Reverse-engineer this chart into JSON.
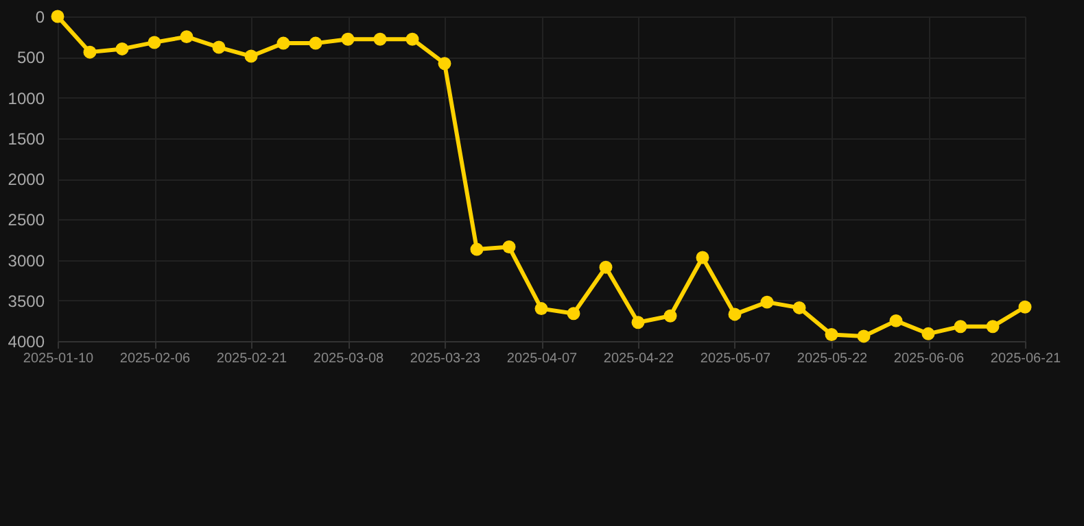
{
  "chart_data": {
    "type": "line",
    "categories": [
      "2025-01-10",
      null,
      null,
      "2025-02-06",
      null,
      null,
      "2025-02-21",
      null,
      null,
      "2025-03-08",
      null,
      null,
      "2025-03-23",
      null,
      null,
      "2025-04-07",
      null,
      null,
      "2025-04-22",
      null,
      null,
      "2025-05-07",
      null,
      null,
      "2025-05-22",
      null,
      null,
      "2025-06-06",
      null,
      null,
      "2025-06-21"
    ],
    "series": [
      {
        "color": "#ffd200",
        "values": [
          0,
          440,
          400,
          320,
          250,
          380,
          490,
          330,
          330,
          280,
          280,
          280,
          580,
          2870,
          2840,
          3600,
          3660,
          3090,
          3770,
          3690,
          2970,
          3670,
          3520,
          3590,
          3920,
          3940,
          3750,
          3910,
          3820,
          3820,
          3580
        ]
      }
    ],
    "ylim": [
      4000,
      0
    ],
    "yticks": [
      0,
      500,
      1000,
      1500,
      2000,
      2500,
      3000,
      3500,
      4000
    ],
    "grid": true,
    "marker": "circle",
    "line_style": "solid"
  }
}
